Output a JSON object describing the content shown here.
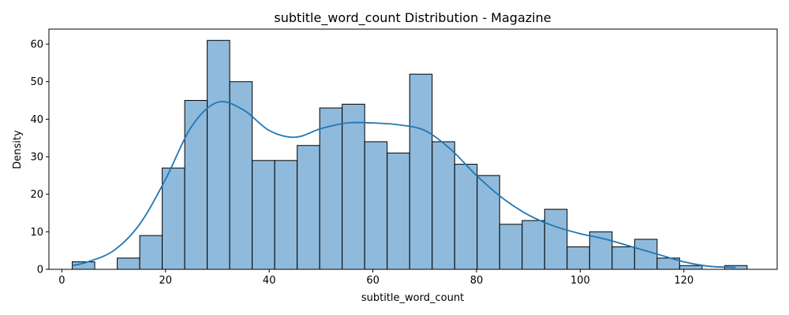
{
  "chart_data": {
    "type": "bar",
    "title": "subtitle_word_count Distribution - Magazine",
    "xlabel": "subtitle_word_count",
    "ylabel": "Density",
    "xlim": [
      -2.5,
      138
    ],
    "ylim": [
      0,
      64
    ],
    "xticks": [
      0,
      20,
      40,
      60,
      80,
      100,
      120
    ],
    "yticks": [
      0,
      10,
      20,
      30,
      40,
      50,
      60
    ],
    "bin_start": 2.0,
    "bin_width": 4.34,
    "values": [
      2,
      0,
      3,
      9,
      27,
      45,
      61,
      50,
      29,
      29,
      33,
      43,
      44,
      34,
      31,
      52,
      34,
      28,
      25,
      12,
      13,
      16,
      6,
      10,
      6,
      8,
      3,
      1,
      0,
      1
    ],
    "bar_color": "#8fbadb",
    "edge_color": "#000000",
    "kde_color": "#1f77b4",
    "kde": {
      "x": [
        2,
        5,
        10,
        15,
        20,
        25,
        30,
        35,
        40,
        45,
        50,
        55,
        60,
        65,
        70,
        75,
        80,
        85,
        90,
        95,
        100,
        105,
        110,
        115,
        120,
        125,
        130
      ],
      "y": [
        1,
        2,
        5,
        12,
        24,
        38,
        44.5,
        42.5,
        37,
        35.2,
        37.5,
        39,
        39,
        38.5,
        37,
        32,
        25,
        19,
        14.5,
        11.5,
        9.5,
        8,
        6,
        4,
        2,
        0.8,
        0.5
      ]
    }
  }
}
